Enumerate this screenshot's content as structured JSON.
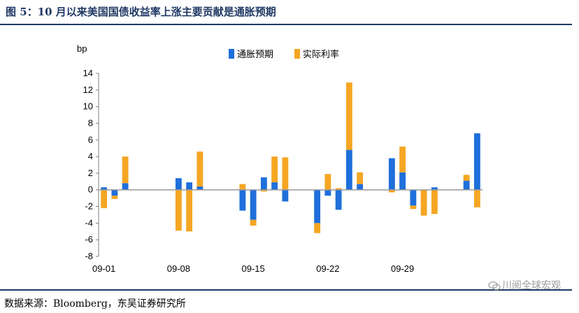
{
  "figure": {
    "title": "图 5：10 月以来美国国债收益率上涨主要贡献是通胀预期",
    "source": "数据来源：Bloomberg，东吴证券研究所",
    "watermark": "川阅全球宏观"
  },
  "chart_data": {
    "type": "bar",
    "stacked": true,
    "ylabel": "bp",
    "ylim": [
      -8,
      14
    ],
    "yticks": [
      14,
      12,
      10,
      8,
      6,
      4,
      2,
      0,
      -2,
      -4,
      -6,
      -8
    ],
    "categories": [
      "09-01",
      "09-02",
      "09-03",
      "09-04",
      "09-05",
      "09-06",
      "09-07",
      "09-08",
      "09-09",
      "09-10",
      "09-11",
      "09-12",
      "09-13",
      "09-14",
      "09-15",
      "09-16",
      "09-17",
      "09-18",
      "09-19",
      "09-20",
      "09-21",
      "09-22",
      "09-23",
      "09-24",
      "09-25",
      "09-26",
      "09-27",
      "09-28",
      "09-29",
      "09-30",
      "10-01",
      "10-02",
      "10-03",
      "10-04",
      "10-05",
      "10-06"
    ],
    "xtick_labels": [
      "09-01",
      "09-08",
      "09-15",
      "09-22",
      "09-29"
    ],
    "series": [
      {
        "name": "通胀预期",
        "color": "#1f6fdb",
        "values": [
          0.3,
          -0.7,
          0.8,
          null,
          null,
          null,
          null,
          1.4,
          0.9,
          0.4,
          null,
          null,
          null,
          -2.5,
          -3.6,
          1.5,
          0.9,
          -1.4,
          null,
          null,
          -4.0,
          -0.7,
          -2.4,
          4.8,
          0.7,
          null,
          null,
          3.8,
          2.1,
          -1.9,
          null,
          0.3,
          null,
          null,
          1.1,
          6.8
        ]
      },
      {
        "name": "实际利率",
        "color": "#f5a623",
        "values": [
          -2.2,
          -0.4,
          3.2,
          null,
          null,
          null,
          null,
          -4.9,
          -5.0,
          4.2,
          null,
          null,
          null,
          0.7,
          -0.7,
          -0.2,
          3.1,
          3.9,
          null,
          null,
          -1.2,
          1.9,
          0.2,
          8.1,
          1.4,
          null,
          null,
          -0.3,
          3.1,
          -0.4,
          -3.1,
          -2.9,
          null,
          null,
          0.7,
          -2.1
        ]
      }
    ],
    "legend_position": "top-center"
  }
}
